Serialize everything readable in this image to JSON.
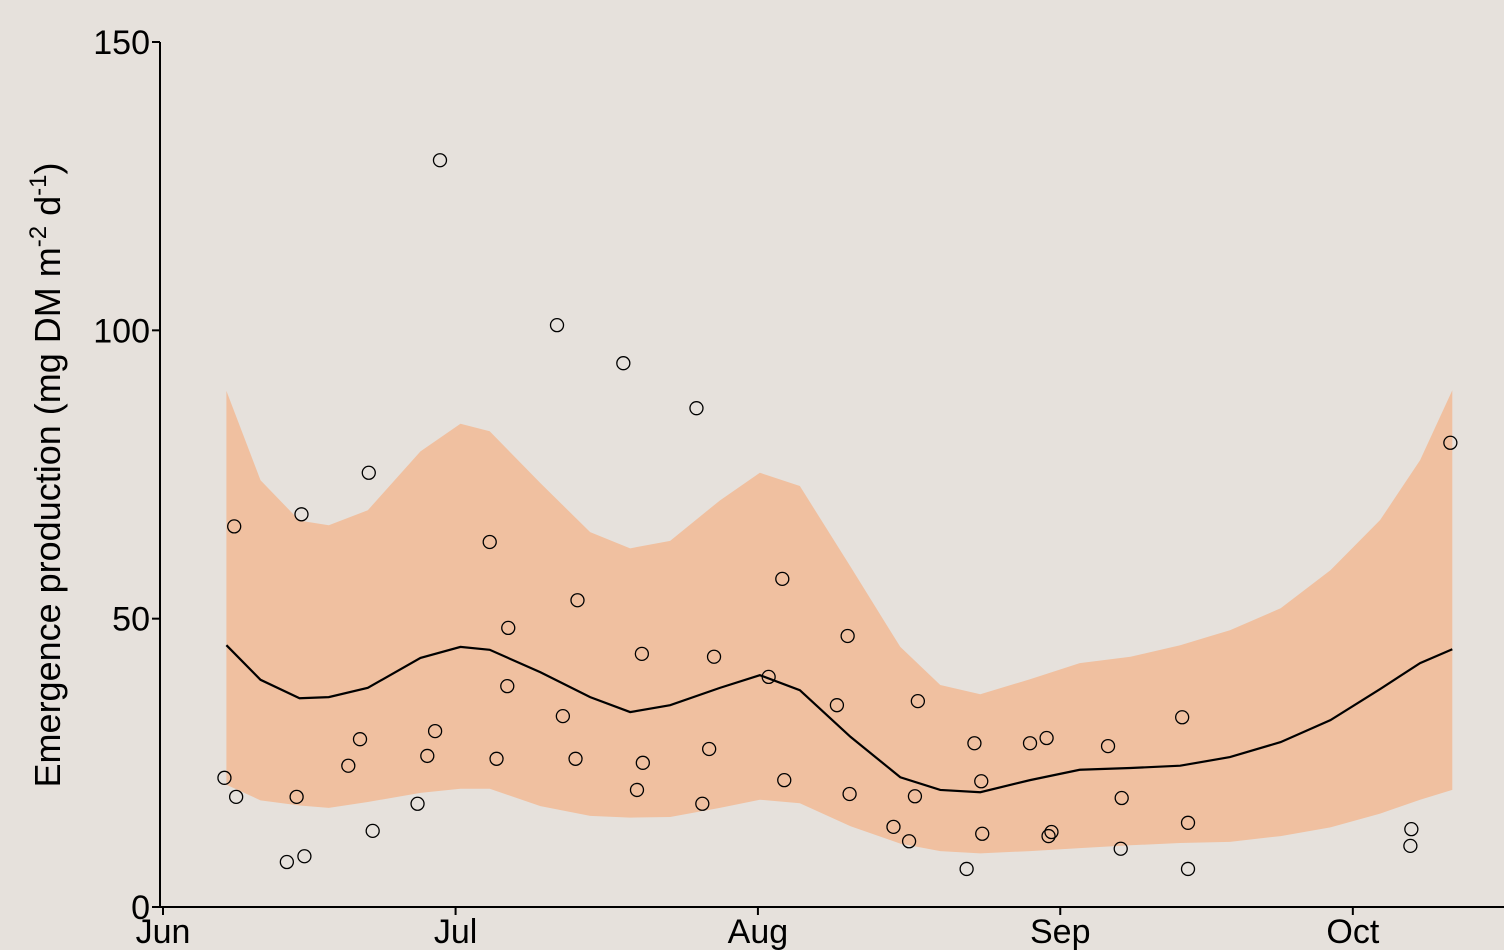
{
  "chart_data": {
    "type": "scatter",
    "y_label": {
      "main": "Emergence production (mg DM m",
      "sup1": "-2",
      "mid": " d",
      "sup2": "-1",
      "end": ")"
    },
    "xlim": [
      0,
      137.5
    ],
    "xticks": [
      {
        "value": 0,
        "label": "Jun"
      },
      {
        "value": 30,
        "label": "Jul"
      },
      {
        "value": 61,
        "label": "Aug"
      },
      {
        "value": 92,
        "label": "Sep"
      },
      {
        "value": 122,
        "label": "Oct"
      }
    ],
    "ylim": [
      0,
      150
    ],
    "yticks": [
      0,
      50,
      100,
      150
    ],
    "background": "#e6e1dc",
    "points": {
      "color": "#000000",
      "x": [
        6.3,
        7.3,
        7.5,
        12.7,
        13.7,
        14.2,
        14.5,
        19.0,
        20.2,
        21.1,
        21.5,
        26.1,
        27.1,
        27.9,
        28.4,
        33.5,
        34.2,
        35.3,
        35.4,
        40.4,
        41.0,
        42.3,
        42.5,
        47.2,
        48.6,
        49.1,
        49.2,
        54.7,
        55.3,
        56.0,
        56.5,
        62.1,
        63.5,
        63.7,
        69.1,
        70.2,
        70.4,
        74.9,
        76.5,
        77.1,
        77.4,
        82.4,
        83.2,
        83.9,
        84.0,
        88.9,
        90.6,
        90.8,
        91.1,
        96.9,
        98.2,
        98.3,
        104.5,
        105.1,
        105.1,
        127.9,
        128.0,
        132.0
      ],
      "y": [
        22.4,
        66,
        19.1,
        7.8,
        19.1,
        68.1,
        8.8,
        24.5,
        29.1,
        75.3,
        13.2,
        17.9,
        26.2,
        30.5,
        129.5,
        63.3,
        25.7,
        38.3,
        48.4,
        100.9,
        33.1,
        25.7,
        53.2,
        94.3,
        20.3,
        43.9,
        25.0,
        86.5,
        17.9,
        27.4,
        43.4,
        39.9,
        56.9,
        22.0,
        35.0,
        47.0,
        19.6,
        13.9,
        11.4,
        19.2,
        35.7,
        6.6,
        28.4,
        21.8,
        12.7,
        28.4,
        29.3,
        12.3,
        13.0,
        27.9,
        10.1,
        18.9,
        32.9,
        14.6,
        6.6,
        10.6,
        13.5,
        80.5
      ]
    },
    "fit": {
      "color": "#000000",
      "band_color": "#f0c0a0",
      "x": [
        6.5,
        10,
        14,
        17,
        21,
        26.4,
        30.5,
        33.5,
        38.7,
        43.8,
        47.9,
        52,
        57.1,
        61.2,
        65.3,
        70.5,
        75.6,
        79.7,
        83.8,
        88.9,
        94,
        99.2,
        104.3,
        109.4,
        114.6,
        119.7,
        124.8,
        128.9,
        132.2
      ],
      "y": [
        45.4,
        39.4,
        36.2,
        36.4,
        38,
        43.2,
        45.1,
        44.6,
        40.7,
        36.4,
        33.8,
        35,
        38,
        40.2,
        37.6,
        29.5,
        22.5,
        20.3,
        19.9,
        22,
        23.8,
        24.1,
        24.5,
        26,
        28.6,
        32.4,
        37.8,
        42.3,
        44.7
      ],
      "upper": [
        89.5,
        74,
        67,
        66.2,
        68.8,
        79,
        83.8,
        82.5,
        73.5,
        65,
        62.2,
        63.5,
        70.5,
        75.3,
        73,
        59,
        45.1,
        38.5,
        36.9,
        39.5,
        42.3,
        43.4,
        45.4,
        48,
        51.8,
        58.4,
        67.1,
        77.5,
        89.6
      ],
      "lower": [
        21.2,
        18.5,
        17.6,
        17.2,
        18.2,
        19.8,
        20.5,
        20.5,
        17.5,
        15.8,
        15.5,
        15.6,
        17.2,
        18.6,
        18,
        14,
        11,
        9.7,
        9.3,
        9.7,
        10.2,
        10.7,
        11.1,
        11.3,
        12.3,
        13.8,
        16.2,
        18.6,
        20.3
      ]
    }
  }
}
